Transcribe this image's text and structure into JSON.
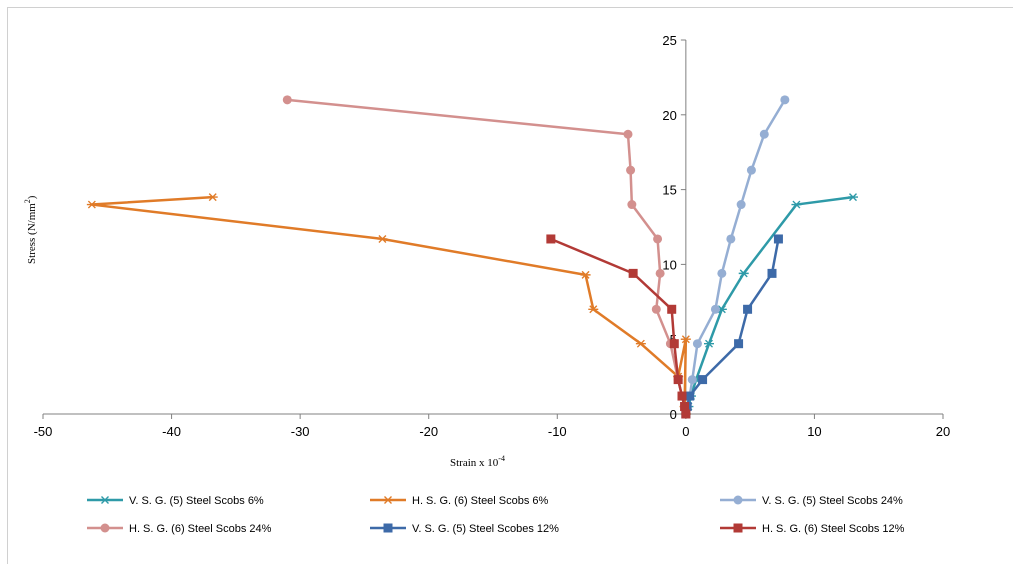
{
  "chart_data": {
    "type": "scatter",
    "title": "",
    "xlabel": "Strain x 10",
    "xlabel_sup": "-4",
    "ylabel": "Stress (N/mm",
    "ylabel_sup": "2",
    "ylabel_tail": ")",
    "xlim": [
      -50,
      20
    ],
    "ylim": [
      0,
      25
    ],
    "xticks": [
      -50,
      -40,
      -30,
      -20,
      -10,
      0,
      10,
      20
    ],
    "yticks": [
      0,
      5,
      10,
      15,
      20,
      25
    ],
    "grid": false,
    "legend_position": "bottom",
    "series": [
      {
        "name": "V. S. G. (5) Steel Scobs 6%",
        "color": "#2e9aa8",
        "marker": "star",
        "x": [
          0,
          0.2,
          0.4,
          0.8,
          1.8,
          2.8,
          4.5,
          8.6,
          13.0
        ],
        "y": [
          0,
          0.5,
          1.2,
          2.3,
          4.7,
          7.0,
          9.4,
          14.0,
          14.5
        ]
      },
      {
        "name": "H. S. G. (6) Steel Scobs 6%",
        "color": "#e07b28",
        "marker": "star",
        "x": [
          0,
          -0.1,
          0,
          -0.6,
          -3.5,
          -7.2,
          -7.8,
          -23.6,
          -46.2,
          -36.8
        ],
        "y": [
          0,
          0.5,
          5.0,
          2.5,
          4.7,
          7.0,
          9.3,
          11.7,
          14.0,
          14.5
        ]
      },
      {
        "name": "V. S. G. (5) Steel Scobs 24%",
        "color": "#95aed3",
        "marker": "circle",
        "x": [
          0,
          0.1,
          0.3,
          0.5,
          0.9,
          2.3,
          2.8,
          3.5,
          4.3,
          5.1,
          6.1,
          7.7
        ],
        "y": [
          0,
          0.5,
          1.2,
          2.3,
          4.7,
          7.0,
          9.4,
          11.7,
          14.0,
          16.3,
          18.7,
          21.0
        ]
      },
      {
        "name": "H. S. G. (6) Steel Scobs 24%",
        "color": "#d3908e",
        "marker": "circle",
        "x": [
          0,
          -0.1,
          -0.3,
          -0.6,
          -1.2,
          -2.3,
          -2.0,
          -2.2,
          -4.2,
          -4.3,
          -4.5,
          -31.0
        ],
        "y": [
          0,
          0.5,
          1.2,
          2.3,
          4.7,
          7.0,
          9.4,
          11.7,
          14.0,
          16.3,
          18.7,
          21.0
        ]
      },
      {
        "name": "V. S. G. (5) Steel Scobes 12%",
        "color": "#3d6aa8",
        "marker": "square",
        "x": [
          0,
          0.1,
          0.3,
          1.3,
          4.1,
          4.8,
          6.7,
          7.2
        ],
        "y": [
          0,
          0.5,
          1.2,
          2.3,
          4.7,
          7.0,
          9.4,
          11.7
        ]
      },
      {
        "name": "H. S. G. (6) Steel Scobs 12%",
        "color": "#b23a36",
        "marker": "square",
        "x": [
          0,
          -0.1,
          -0.3,
          -0.6,
          -0.9,
          -1.1,
          -4.1,
          -10.5
        ],
        "y": [
          0,
          0.5,
          1.2,
          2.3,
          4.7,
          7.0,
          9.4,
          11.7
        ]
      }
    ]
  }
}
